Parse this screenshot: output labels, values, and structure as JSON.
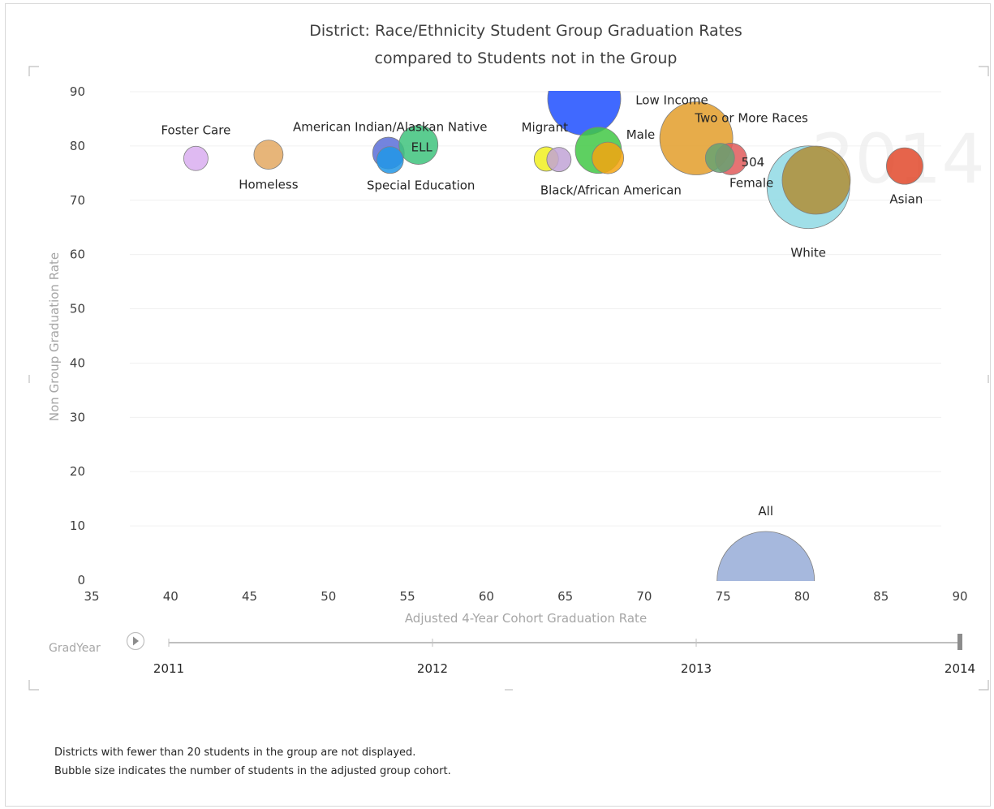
{
  "footnotes": [
    "Districts with fewer than 20 students in the group are not displayed.",
    "Bubble size indicates the number of students in the adjusted group cohort."
  ],
  "play_axis": {
    "label": "GradYear",
    "years": [
      "2011",
      "2012",
      "2013",
      "2014"
    ],
    "selected": "2014"
  },
  "watermark_text": "2014",
  "chart_data": {
    "type": "scatter",
    "title": [
      "District: Race/Ethnicity Student Group Graduation Rates",
      "compared to Students not in the Group"
    ],
    "xlabel": "Adjusted 4-Year Cohort Graduation Rate",
    "ylabel": "Non Group Graduation Rate",
    "xlim": [
      35,
      90
    ],
    "ylim": [
      0,
      90
    ],
    "xticks": [
      35,
      40,
      45,
      50,
      55,
      60,
      65,
      70,
      75,
      80,
      85,
      90
    ],
    "yticks": [
      0,
      10,
      20,
      30,
      40,
      50,
      60,
      70,
      80,
      90
    ],
    "grid": true,
    "size_encoding": "students in adjusted group cohort",
    "points": [
      {
        "name": "Foster Care",
        "x": 41.6,
        "y": 77.7,
        "size": 1.0,
        "color": "#d9aef0",
        "label_dx": 0,
        "label_dy": -30
      },
      {
        "name": "Homeless",
        "x": 46.2,
        "y": 78.4,
        "size": 1.2,
        "color": "#e3a862",
        "label_dx": 0,
        "label_dy": 42
      },
      {
        "name": "American Indian/Alaskan Native",
        "x": 53.8,
        "y": 78.7,
        "size": 1.3,
        "color": "#5b6fd8",
        "label_dx": 2,
        "label_dy": -27
      },
      {
        "name": "ELL",
        "x": 55.7,
        "y": 80.2,
        "size": 1.6,
        "color": "#3ec37c",
        "label_dx": 4,
        "label_dy": 8
      },
      {
        "name": "Special Education",
        "x": 53.9,
        "y": 77.4,
        "size": 1.1,
        "color": "#2196e6",
        "label_dx": 38,
        "label_dy": 36
      },
      {
        "name": "Low Income",
        "x": 66.2,
        "y": 88.7,
        "size": 3.0,
        "color": "#1f4fff",
        "label_dx": 108,
        "label_dy": 7
      },
      {
        "name": "Migrant",
        "x": 63.8,
        "y": 77.6,
        "size": 1.0,
        "color": "#f1f020",
        "label_dx": -2,
        "label_dy": -34
      },
      {
        "name": "Black/African American",
        "x": 64.6,
        "y": 77.5,
        "size": 1.0,
        "color": "#c1a3d6",
        "label_dx": 64,
        "label_dy": 43
      },
      {
        "name": "Male",
        "x": 67.1,
        "y": 79.2,
        "size": 1.9,
        "color": "#42c845",
        "label_dx": 52,
        "label_dy": -14
      },
      {
        "name": "Female",
        "x": 67.7,
        "y": 77.8,
        "size": 1.3,
        "color": "#f4a410",
        "label_dx": 177,
        "label_dy": 36
      },
      {
        "name": "Two or More Races",
        "x": 73.3,
        "y": 81.4,
        "size": 3.0,
        "color": "#e39e2a",
        "label_dx": 68,
        "label_dy": -20
      },
      {
        "name": "504",
        "x": 75.5,
        "y": 77.6,
        "size": 1.3,
        "color": "#e15a5a",
        "label_dx": 27,
        "label_dy": 9
      },
      {
        "name": "",
        "x": 74.8,
        "y": 77.8,
        "size": 1.2,
        "color": "#66a272",
        "label_dx": 0,
        "label_dy": 0
      },
      {
        "name": "White",
        "x": 80.4,
        "y": 72.4,
        "size": 3.4,
        "color": "#8fd9e4",
        "label_dx": 0,
        "label_dy": 86
      },
      {
        "name": "",
        "x": 80.9,
        "y": 73.7,
        "size": 2.8,
        "color": "#b08e35",
        "label_dx": 0,
        "label_dy": 0
      },
      {
        "name": "Asian",
        "x": 86.5,
        "y": 76.3,
        "size": 1.5,
        "color": "#e2492c",
        "label_dx": 2,
        "label_dy": 46
      },
      {
        "name": "All",
        "x": 77.7,
        "y": 0,
        "size": 4.0,
        "color": "#97acd7",
        "label_dx": 0,
        "label_dy": -80
      }
    ]
  }
}
